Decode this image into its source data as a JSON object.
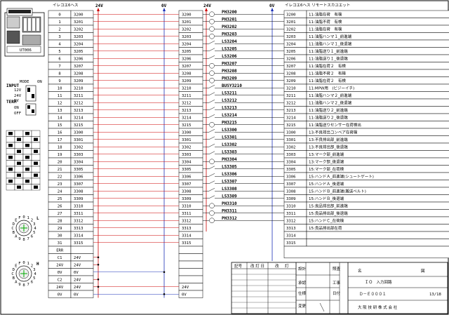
{
  "module_header": "イレコエ6ヘス",
  "rail_p1": "24V",
  "rail_n1": "0V",
  "rail_p2": "24V",
  "rail_n2": "0V",
  "remote_header": "イレコエ6ヘス リモートスカユエット",
  "module_label": "UT006",
  "switch_labels": {
    "input": "INPUT",
    "term": "TERM",
    "v12": "12V",
    "v24": "24V",
    "v5": "5V",
    "on": "ON",
    "off": "OFF",
    "mode": "MODE",
    "on2": "ON"
  },
  "rotary1_digits": [
    "0",
    "1",
    "2",
    "3",
    "4",
    "5",
    "6",
    "7",
    "8",
    "9",
    "A",
    "B",
    "C",
    "D",
    "E",
    "F"
  ],
  "rotary1_label": "L",
  "rotary2_label": "H",
  "left_rows": [
    {
      "num": "0",
      "addr": "3200"
    },
    {
      "num": "1",
      "addr": "3201"
    },
    {
      "num": "2",
      "addr": "3202"
    },
    {
      "num": "3",
      "addr": "3203"
    },
    {
      "num": "4",
      "addr": "3204"
    },
    {
      "num": "5",
      "addr": "3205"
    },
    {
      "num": "6",
      "addr": "3206"
    },
    {
      "num": "7",
      "addr": "3207"
    },
    {
      "num": "8",
      "addr": "3208"
    },
    {
      "num": "9",
      "addr": "3209"
    },
    {
      "num": "10",
      "addr": "3210"
    },
    {
      "num": "11",
      "addr": "3211"
    },
    {
      "num": "12",
      "addr": "3212"
    },
    {
      "num": "13",
      "addr": "3213"
    },
    {
      "num": "14",
      "addr": "3214"
    },
    {
      "num": "15",
      "addr": "3215"
    },
    {
      "num": "16",
      "addr": "3300"
    },
    {
      "num": "17",
      "addr": "3301"
    },
    {
      "num": "18",
      "addr": "3302"
    },
    {
      "num": "19",
      "addr": "3303"
    },
    {
      "num": "20",
      "addr": "3304"
    },
    {
      "num": "21",
      "addr": "3305"
    },
    {
      "num": "22",
      "addr": "3306"
    },
    {
      "num": "23",
      "addr": "3307"
    },
    {
      "num": "24",
      "addr": "3308"
    },
    {
      "num": "25",
      "addr": "3309"
    },
    {
      "num": "26",
      "addr": "3310"
    },
    {
      "num": "27",
      "addr": "3311"
    },
    {
      "num": "28",
      "addr": "3312"
    },
    {
      "num": "29",
      "addr": "3313"
    },
    {
      "num": "30",
      "addr": "3314"
    },
    {
      "num": "31",
      "addr": "3315"
    },
    {
      "num": "ERR",
      "addr": ""
    },
    {
      "num": "C1",
      "addr": "24V"
    },
    {
      "num": "24V",
      "addr": "24V"
    },
    {
      "num": "0V",
      "addr": "0V"
    },
    {
      "num": "C2",
      "addr": "24V"
    },
    {
      "num": "24V",
      "addr": "24V"
    },
    {
      "num": "0V",
      "addr": "0V"
    }
  ],
  "mid_addrs": [
    "3200",
    "3201",
    "3202",
    "3203",
    "3204",
    "3205",
    "3206",
    "3207",
    "3208",
    "3209",
    "3210",
    "3211",
    "3212",
    "3213",
    "3214",
    "3215",
    "3300",
    "3301",
    "3302",
    "3303",
    "3304",
    "3305",
    "3306",
    "3307",
    "3308",
    "3309",
    "3310",
    "3311",
    "3312",
    "3313",
    "3314",
    "3315",
    "",
    "",
    "",
    "",
    "",
    "24V",
    "0V"
  ],
  "sensor_labels": [
    "PH3200",
    "PH3201",
    "PH3202",
    "PH3203",
    "LS3204",
    "LS3205",
    "LS3206",
    "PH3207",
    "PH3208",
    "PH3209",
    "BUSY3210",
    "LS3211",
    "LS3212",
    "LS3213",
    "LS3214",
    "PH3215",
    "LS3300",
    "LS3301",
    "LS3302",
    "LS3303",
    "PH3304",
    "LS3305",
    "LS3306",
    "LS3307",
    "LS3308",
    "LS3309",
    "PH3310",
    "PH3311",
    "PH3312"
  ],
  "remote_rows": [
    {
      "addr": "3200",
      "desc": "11:油脂在荷　有検"
    },
    {
      "addr": "3201",
      "desc": "11:油脂不荷　有検"
    },
    {
      "addr": "3202",
      "desc": "11:油脂在荷　有検"
    },
    {
      "addr": "3203",
      "desc": "11:油脂ハンマ１_前進端"
    },
    {
      "addr": "3204",
      "desc": "11:油脂ハンマ１_後退端"
    },
    {
      "addr": "3205",
      "desc": "11:油脂送り１_前進端"
    },
    {
      "addr": "3206",
      "desc": "11:油脂送り１_後退端"
    },
    {
      "addr": "3207",
      "desc": "11:油脂在荷２　有検"
    },
    {
      "addr": "3208",
      "desc": "11:油脂不荷２　有検"
    },
    {
      "addr": "3209",
      "desc": "11:油脂在荷２　有検"
    },
    {
      "addr": "3210",
      "desc": "11:MPW用　(ビジーイチ)"
    },
    {
      "addr": "3211",
      "desc": "11:油脂ハンマ２_前進端"
    },
    {
      "addr": "3212",
      "desc": "11:油脂ハンマ２_後退端"
    },
    {
      "addr": "3213",
      "desc": "11:油脂送り２_前進端"
    },
    {
      "addr": "3214",
      "desc": "11:油脂送り２_後退端"
    },
    {
      "addr": "3215",
      "desc": "11:油脂送りセンサー在荷検出"
    },
    {
      "addr": "3300",
      "desc": "13:不良排出コンベア在荷検"
    },
    {
      "addr": "3301",
      "desc": "13:不良排出部_前進端"
    },
    {
      "addr": "3302",
      "desc": "13:不良排出部_後退端"
    },
    {
      "addr": "3303",
      "desc": "13:マーク部_前進端"
    },
    {
      "addr": "3304",
      "desc": "13:マーク部_後退端"
    },
    {
      "addr": "3305",
      "desc": "15:マーク部_在荷検"
    },
    {
      "addr": "3306",
      "desc": "15:ハンドＡ_前進端(シュートゲート)"
    },
    {
      "addr": "3307",
      "desc": "15:ハンドＡ_後退端"
    },
    {
      "addr": "3308",
      "desc": "15:ハンドＢ_前進端(搬送ベルト)"
    },
    {
      "addr": "3309",
      "desc": "15:ハンドＢ_後退端"
    },
    {
      "addr": "3310",
      "desc": "15:良品排出部_前進端"
    },
    {
      "addr": "3311",
      "desc": "15:良品排出部_後退端"
    },
    {
      "addr": "3312",
      "desc": "15:ハンドＣ_在荷検"
    },
    {
      "addr": "3313",
      "desc": "15:良品排出部在荷"
    },
    {
      "addr": "3314",
      "desc": ""
    },
    {
      "addr": "3315",
      "desc": ""
    }
  ],
  "title_block": {
    "h1": "記号",
    "h2": "改 訂 日",
    "h3": "改",
    "h4": "訂",
    "r1": "仕様",
    "r2": "変更",
    "r3": "工事",
    "r4": "日付",
    "drawn": "設計",
    "checked": "照査",
    "approved": "承認",
    "name_label": "名",
    "drawing_name": "図",
    "title": "ＩＯ　入力回路",
    "doc_no": "Ｄ－Ｅ０００１",
    "sheet": "13/18",
    "company": "大 阪 技 研 株 式 会 社"
  },
  "colors": {
    "line": "#000000",
    "red": "#cc0000",
    "blue": "#1a2fb8"
  }
}
